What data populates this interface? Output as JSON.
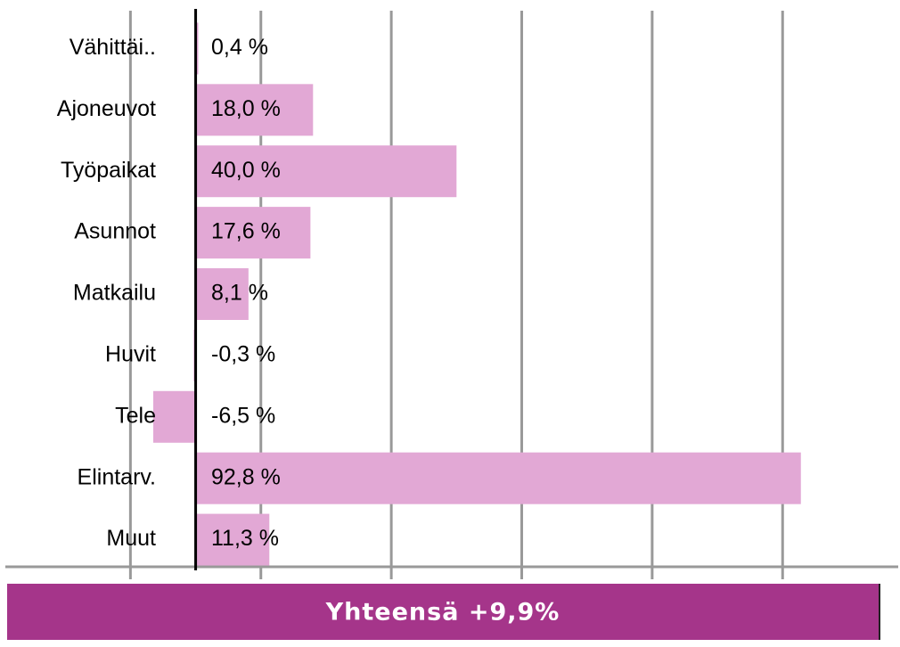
{
  "chart_data": {
    "type": "hbar",
    "categories": [
      "Vähittäi..",
      "Ajoneuvot",
      "Työpaikat",
      "Asunnot",
      "Matkailu",
      "Huvit",
      "Tele",
      "Elintarv.",
      "Muut"
    ],
    "values": [
      0.4,
      18.0,
      40.0,
      17.6,
      8.1,
      -0.3,
      -6.5,
      92.8,
      11.3
    ],
    "value_labels": [
      "0,4 %",
      "18,0 %",
      "40,0 %",
      "17,6 %",
      "8,1 %",
      "-0,3 %",
      "-6,5 %",
      "92,8 %",
      "11,3 %"
    ],
    "color": "#e2a8d5",
    "xlim": [
      -30,
      108
    ],
    "xticks": [
      -10,
      10,
      30,
      50,
      70,
      90
    ],
    "grid": true,
    "footer": "Yhteensä +9,9%"
  }
}
